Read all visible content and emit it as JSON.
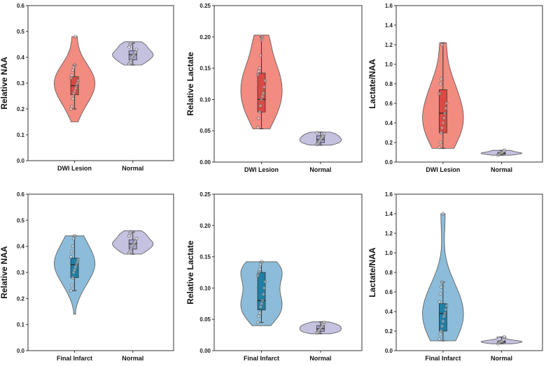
{
  "colors": {
    "dwi_violin": "#f28b80",
    "dwi_box": "#d94a43",
    "normal_violin": "#c5c2e0",
    "normal_box": "#a7a2cf",
    "infarct_violin": "#8cbcd9",
    "infarct_box": "#1f7fa6",
    "outline": "#555555"
  },
  "chart_data": [
    {
      "type": "violin",
      "ylabel": "Relative NAA",
      "ylim": [
        0,
        0.6
      ],
      "yticks": [
        "0.0",
        "0.1",
        "0.2",
        "0.3",
        "0.4",
        "0.5",
        "0.6"
      ],
      "categories": [
        "DWI Lesion",
        "Normal"
      ],
      "series": [
        {
          "name": "DWI Lesion",
          "color_key": "dwi",
          "min": 0.15,
          "q1": 0.255,
          "median": 0.29,
          "q3": 0.325,
          "max": 0.48,
          "whisker_low": 0.2,
          "whisker_high": 0.37,
          "points": [
            0.2,
            0.21,
            0.24,
            0.26,
            0.27,
            0.28,
            0.29,
            0.3,
            0.31,
            0.32,
            0.33,
            0.35,
            0.36,
            0.37,
            0.48
          ]
        },
        {
          "name": "Normal",
          "color_key": "normal",
          "min": 0.37,
          "q1": 0.39,
          "median": 0.41,
          "q3": 0.425,
          "max": 0.46,
          "whisker_low": 0.37,
          "whisker_high": 0.455,
          "points": [
            0.375,
            0.38,
            0.39,
            0.4,
            0.405,
            0.41,
            0.415,
            0.42,
            0.43,
            0.44,
            0.45,
            0.455
          ]
        }
      ]
    },
    {
      "type": "violin",
      "ylabel": "Relative Lactate",
      "ylim": [
        0,
        0.25
      ],
      "yticks": [
        "0.00",
        "0.05",
        "0.10",
        "0.15",
        "0.20",
        "0.25"
      ],
      "categories": [
        "DWI Lesion",
        "Normal"
      ],
      "series": [
        {
          "name": "DWI Lesion",
          "color_key": "dwi",
          "min": 0.053,
          "q1": 0.08,
          "median": 0.1,
          "q3": 0.142,
          "max": 0.203,
          "whisker_low": 0.053,
          "whisker_high": 0.2,
          "points": [
            0.055,
            0.07,
            0.08,
            0.09,
            0.1,
            0.105,
            0.11,
            0.12,
            0.13,
            0.14,
            0.145,
            0.15,
            0.17,
            0.195,
            0.2
          ]
        },
        {
          "name": "Normal",
          "color_key": "normal",
          "min": 0.027,
          "q1": 0.031,
          "median": 0.036,
          "q3": 0.042,
          "max": 0.048,
          "whisker_low": 0.027,
          "whisker_high": 0.048,
          "points": [
            0.028,
            0.03,
            0.032,
            0.034,
            0.036,
            0.038,
            0.04,
            0.042,
            0.045,
            0.047
          ]
        }
      ]
    },
    {
      "type": "violin",
      "ylabel": "Lactate/NAA",
      "ylim": [
        0,
        1.6
      ],
      "yticks": [
        "0.0",
        "0.2",
        "0.4",
        "0.6",
        "0.8",
        "1.0",
        "1.2",
        "1.4",
        "1.6"
      ],
      "categories": [
        "DWI Lesion",
        "Normal"
      ],
      "series": [
        {
          "name": "DWI Lesion",
          "color_key": "dwi",
          "min": 0.14,
          "q1": 0.3,
          "median": 0.5,
          "q3": 0.74,
          "max": 1.22,
          "whisker_low": 0.14,
          "whisker_high": 1.22,
          "points": [
            0.15,
            0.2,
            0.3,
            0.35,
            0.4,
            0.45,
            0.5,
            0.55,
            0.6,
            0.7,
            0.8,
            0.85,
            1.2
          ]
        },
        {
          "name": "Normal",
          "color_key": "normal",
          "min": 0.07,
          "q1": 0.08,
          "median": 0.09,
          "q3": 0.1,
          "max": 0.12,
          "whisker_low": 0.07,
          "whisker_high": 0.12,
          "points": [
            0.07,
            0.08,
            0.085,
            0.09,
            0.095,
            0.1,
            0.11,
            0.12
          ]
        }
      ]
    },
    {
      "type": "violin",
      "ylabel": "Relative NAA",
      "ylim": [
        0,
        0.6
      ],
      "yticks": [
        "0.0",
        "0.1",
        "0.2",
        "0.3",
        "0.4",
        "0.5",
        "0.6"
      ],
      "categories": [
        "Final Infarct",
        "Normal"
      ],
      "series": [
        {
          "name": "Final Infarct",
          "color_key": "infarct",
          "min": 0.14,
          "q1": 0.28,
          "median": 0.33,
          "q3": 0.355,
          "max": 0.44,
          "whisker_low": 0.23,
          "whisker_high": 0.44,
          "points": [
            0.23,
            0.25,
            0.28,
            0.3,
            0.31,
            0.32,
            0.33,
            0.34,
            0.35,
            0.36,
            0.38,
            0.4,
            0.43,
            0.44
          ]
        },
        {
          "name": "Normal",
          "color_key": "normal",
          "min": 0.37,
          "q1": 0.39,
          "median": 0.41,
          "q3": 0.425,
          "max": 0.46,
          "whisker_low": 0.37,
          "whisker_high": 0.455,
          "points": [
            0.375,
            0.38,
            0.39,
            0.4,
            0.405,
            0.41,
            0.415,
            0.42,
            0.43,
            0.44,
            0.45,
            0.455
          ]
        }
      ]
    },
    {
      "type": "violin",
      "ylabel": "Relative Lactate",
      "ylim": [
        0,
        0.25
      ],
      "yticks": [
        "0.00",
        "0.05",
        "0.10",
        "0.15",
        "0.20",
        "0.25"
      ],
      "categories": [
        "Final Infarct",
        "Normal"
      ],
      "series": [
        {
          "name": "Final Infarct",
          "color_key": "infarct",
          "min": 0.04,
          "q1": 0.065,
          "median": 0.08,
          "q3": 0.125,
          "max": 0.142,
          "whisker_low": 0.045,
          "whisker_high": 0.142,
          "points": [
            0.045,
            0.055,
            0.06,
            0.07,
            0.075,
            0.08,
            0.09,
            0.1,
            0.11,
            0.12,
            0.125,
            0.13,
            0.138,
            0.142
          ]
        },
        {
          "name": "Normal",
          "color_key": "normal",
          "min": 0.027,
          "q1": 0.031,
          "median": 0.035,
          "q3": 0.04,
          "max": 0.046,
          "whisker_low": 0.027,
          "whisker_high": 0.046,
          "points": [
            0.028,
            0.03,
            0.032,
            0.034,
            0.036,
            0.038,
            0.04,
            0.042,
            0.045
          ]
        }
      ]
    },
    {
      "type": "violin",
      "ylabel": "Lactate/NAA",
      "ylim": [
        0,
        1.6
      ],
      "yticks": [
        "0.0",
        "0.2",
        "0.4",
        "0.6",
        "0.8",
        "1.0",
        "1.2",
        "1.4",
        "1.6"
      ],
      "categories": [
        "Final Infarct",
        "Normal"
      ],
      "series": [
        {
          "name": "Final Infarct",
          "color_key": "infarct",
          "min": 0.1,
          "q1": 0.2,
          "median": 0.38,
          "q3": 0.48,
          "max": 1.4,
          "whisker_low": 0.1,
          "whisker_high": 0.7,
          "points": [
            0.12,
            0.17,
            0.2,
            0.25,
            0.3,
            0.35,
            0.38,
            0.42,
            0.46,
            0.5,
            0.58,
            0.65,
            0.7,
            1.4
          ]
        },
        {
          "name": "Normal",
          "color_key": "normal",
          "min": 0.07,
          "q1": 0.08,
          "median": 0.09,
          "q3": 0.1,
          "max": 0.14,
          "whisker_low": 0.07,
          "whisker_high": 0.14,
          "points": [
            0.07,
            0.08,
            0.085,
            0.09,
            0.095,
            0.1,
            0.11,
            0.14
          ]
        }
      ]
    }
  ]
}
